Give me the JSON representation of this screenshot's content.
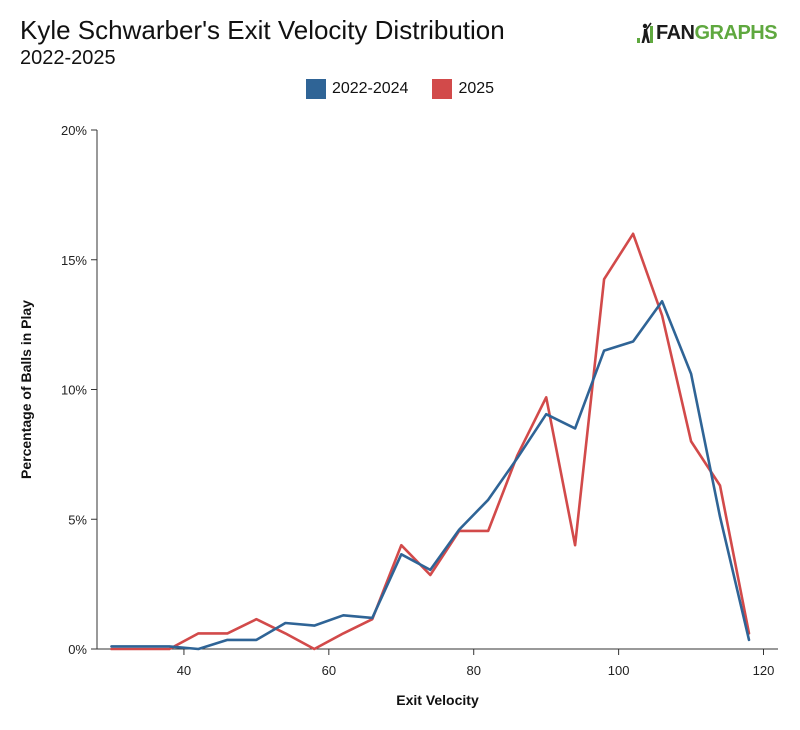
{
  "header": {
    "title": "Kyle Schwarber's Exit Velocity Distribution",
    "subtitle": "2022-2025",
    "logo_fan": "FAN",
    "logo_graphs": "GRAPHS"
  },
  "colors": {
    "series_2022_2024": "#2f6496",
    "series_2025": "#d24a4a",
    "logo_green": "#5fa83f"
  },
  "chart_data": {
    "type": "line",
    "xlabel": "Exit Velocity",
    "ylabel": "Percentage of Balls in Play",
    "xlim": [
      28,
      122
    ],
    "ylim": [
      0,
      20
    ],
    "x_ticks": [
      40,
      60,
      80,
      100,
      120
    ],
    "x_tick_labels": [
      "40",
      "60",
      "80",
      "100",
      "120"
    ],
    "y_ticks": [
      0,
      5,
      10,
      15,
      20
    ],
    "y_tick_labels": [
      "0%",
      "5%",
      "10%",
      "15%",
      "20%"
    ],
    "grid": false,
    "legend_position": "top-center",
    "x": [
      30,
      34,
      38,
      42,
      46,
      50,
      54,
      58,
      62,
      66,
      70,
      74,
      78,
      82,
      86,
      90,
      94,
      98,
      102,
      106,
      110,
      114,
      118
    ],
    "series": [
      {
        "name": "2022-2024",
        "color": "#2f6496",
        "values": [
          0.1,
          0.1,
          0.1,
          0.0,
          0.35,
          0.35,
          1.0,
          0.9,
          1.3,
          1.2,
          3.65,
          3.05,
          4.6,
          5.75,
          7.35,
          9.05,
          8.5,
          11.5,
          11.85,
          13.4,
          10.6,
          5.1,
          0.35
        ]
      },
      {
        "name": "2025",
        "color": "#d24a4a",
        "values": [
          0.0,
          0.0,
          0.0,
          0.6,
          0.6,
          1.15,
          0.6,
          0.0,
          0.6,
          1.15,
          4.0,
          2.85,
          4.55,
          4.55,
          7.45,
          9.7,
          4.0,
          14.25,
          16.0,
          12.85,
          8.0,
          6.3,
          0.6
        ]
      }
    ]
  }
}
